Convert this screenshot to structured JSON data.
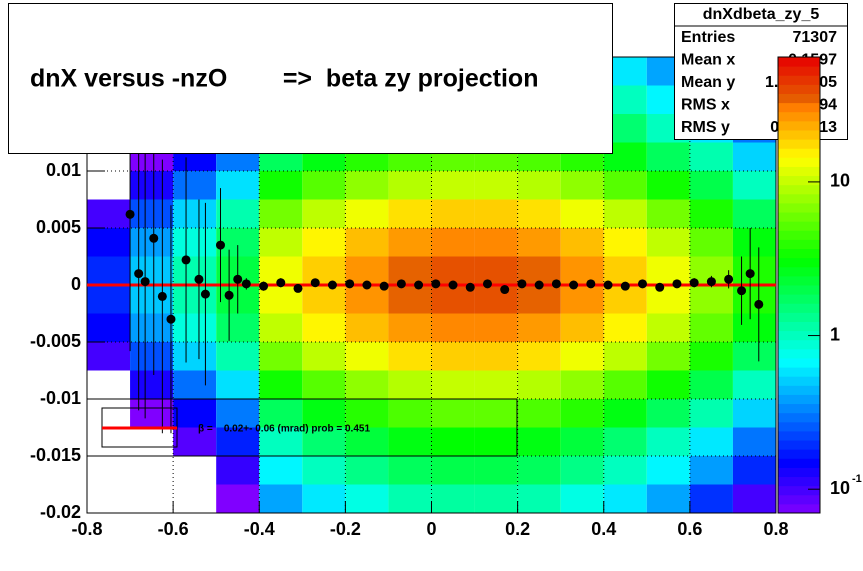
{
  "chart_data": {
    "type": "heatmap",
    "title": "dnX versus -nzO        =>  beta zy projection",
    "xlim": [
      -0.8,
      0.8
    ],
    "xticks": [
      -0.8,
      -0.6,
      -0.4,
      -0.2,
      0,
      0.2,
      0.4,
      0.6,
      0.8
    ],
    "ylim": [
      -0.02,
      0.02
    ],
    "yticks": [
      -0.02,
      -0.015,
      -0.01,
      -0.005,
      0,
      0.005,
      0.01
    ],
    "zlim": [
      0.07,
      65
    ],
    "zticks": [
      {
        "value": 0.1,
        "label": "10",
        "exponent": "-1"
      },
      1,
      10
    ],
    "zlog": true,
    "grid": true,
    "xbins": [
      -0.8,
      -0.7,
      -0.6,
      -0.5,
      -0.4,
      -0.3,
      -0.2,
      -0.1,
      0,
      0.1,
      0.2,
      0.3,
      0.4,
      0.5,
      0.6,
      0.7,
      0.8
    ],
    "ybins": [
      -0.02,
      -0.0175,
      -0.015,
      -0.0125,
      -0.01,
      -0.0075,
      -0.005,
      -0.0025,
      0,
      0.0025,
      0.005,
      0.0075,
      0.01,
      0.0125,
      0.015,
      0.0175,
      0.02
    ],
    "z": [
      [
        0.01,
        0.02,
        0.03,
        0.07,
        0.4,
        0.6,
        0.8,
        1.1,
        1.2,
        1.2,
        1.1,
        0.8,
        0.6,
        0.4,
        0.2,
        0.1
      ],
      [
        0.01,
        0.03,
        0.06,
        0.11,
        0.65,
        1,
        1.4,
        1.8,
        2,
        2,
        1.8,
        1.4,
        1,
        0.65,
        0.38,
        0.19
      ],
      [
        0.02,
        0.04,
        0.09,
        0.18,
        1,
        1.6,
        2.2,
        2.8,
        3.1,
        3.1,
        2.8,
        2.2,
        1.6,
        1,
        0.6,
        0.3
      ],
      [
        0.03,
        0.07,
        0.15,
        0.31,
        1.8,
        2.8,
        3.9,
        4.9,
        5.5,
        5.5,
        4.9,
        3.9,
        2.8,
        1.8,
        1.1,
        0.53
      ],
      [
        0.05,
        0.13,
        0.29,
        0.57,
        3.4,
        5.2,
        7.3,
        9.1,
        10,
        10,
        9.1,
        7.3,
        5.2,
        3.4,
        2,
        1
      ],
      [
        0.1,
        0.24,
        0.53,
        1.1,
        6.2,
        9.6,
        13,
        17,
        19,
        19,
        17,
        13,
        9.6,
        6.2,
        3.6,
        1.8
      ],
      [
        0.15,
        0.38,
        0.83,
        1.7,
        9.8,
        15,
        21,
        26,
        29,
        29,
        26,
        21,
        15,
        9.8,
        5.6,
        2.9
      ],
      [
        0.19,
        0.49,
        1.1,
        2.1,
        13,
        19,
        27,
        34,
        38,
        38,
        34,
        27,
        19,
        13,
        7.3,
        3.7
      ],
      [
        0.19,
        0.49,
        1.1,
        2.1,
        13,
        19,
        27,
        34,
        38,
        38,
        34,
        27,
        19,
        13,
        7.3,
        3.7
      ],
      [
        0.15,
        0.38,
        0.83,
        1.7,
        9.8,
        15,
        21,
        26,
        29,
        29,
        26,
        21,
        15,
        9.8,
        5.6,
        2.9
      ],
      [
        0.1,
        0.24,
        0.53,
        1.1,
        6.2,
        9.6,
        13,
        17,
        19,
        19,
        17,
        13,
        9.6,
        6.2,
        3.6,
        1.8
      ],
      [
        0.05,
        0.13,
        0.29,
        0.57,
        3.4,
        5.2,
        7.3,
        9.1,
        10,
        10,
        9.1,
        7.3,
        5.2,
        3.4,
        2,
        1
      ],
      [
        0.03,
        0.07,
        0.15,
        0.31,
        1.8,
        2.8,
        3.9,
        4.9,
        5.5,
        5.5,
        4.9,
        3.9,
        2.8,
        1.8,
        1.1,
        0.53
      ],
      [
        0.02,
        0.04,
        0.09,
        0.18,
        1,
        1.6,
        2.2,
        2.8,
        3.1,
        3.1,
        2.8,
        2.2,
        1.6,
        1,
        0.6,
        0.3
      ],
      [
        0.01,
        0.03,
        0.06,
        0.11,
        0.65,
        1,
        1.4,
        1.8,
        2,
        2,
        1.8,
        1.4,
        1,
        0.65,
        0.38,
        0.19
      ],
      [
        0.01,
        0.02,
        0.03,
        0.07,
        0.4,
        0.6,
        0.8,
        1.1,
        1.2,
        1.2,
        1.1,
        0.8,
        0.6,
        0.4,
        0.2,
        0.1
      ]
    ],
    "profile": {
      "color": "#000000",
      "x": [
        -0.7,
        -0.68,
        -0.665,
        -0.645,
        -0.625,
        -0.605,
        -0.57,
        -0.54,
        -0.525,
        -0.49,
        -0.47,
        -0.45,
        -0.43,
        -0.39,
        -0.35,
        -0.31,
        -0.27,
        -0.23,
        -0.19,
        -0.15,
        -0.11,
        -0.07,
        -0.03,
        0.01,
        0.05,
        0.09,
        0.13,
        0.17,
        0.21,
        0.25,
        0.29,
        0.33,
        0.37,
        0.41,
        0.45,
        0.49,
        0.53,
        0.57,
        0.61,
        0.65,
        0.69,
        0.72,
        0.74,
        0.76
      ],
      "y": [
        0.0062,
        0.001,
        0.0003,
        0.0041,
        -0.001,
        -0.003,
        0.0022,
        0.0005,
        -0.0008,
        0.0035,
        -0.0009,
        0.0005,
        0.0001,
        -0.0001,
        0.0002,
        -0.0003,
        0.0002,
        0,
        0.0001,
        0,
        -0.0001,
        0.0001,
        0,
        0.0001,
        0,
        -0.0002,
        0.0001,
        -0.0004,
        0.0001,
        0,
        0.0001,
        0,
        0.0001,
        0,
        -0.0001,
        0.0001,
        -0.0002,
        0.0001,
        0.0002,
        0.0003,
        0.0005,
        -0.0005,
        0.001,
        -0.0017
      ],
      "err": [
        0.012,
        0.012,
        0.012,
        0.012,
        0.012,
        0.01,
        0.009,
        0.007,
        0.008,
        0.005,
        0.004,
        0.003,
        0.0005,
        0.0004,
        0.0004,
        0.0003,
        0.0003,
        0.0003,
        0.0002,
        0.0002,
        0.0002,
        0.0002,
        0.0002,
        0.0002,
        0.0002,
        0.0002,
        0.0002,
        0.0002,
        0.0002,
        0.0002,
        0.0002,
        0.0002,
        0.0002,
        0.0002,
        0.0002,
        0.0003,
        0.0003,
        0.0003,
        0.0004,
        0.0005,
        0.0008,
        0.003,
        0.004,
        0.005
      ]
    },
    "fit": {
      "y": 0,
      "color": "#ff0000"
    },
    "legend": {
      "text": "β =    0.02+- 0.06 (mrad) prob = 0.451"
    },
    "stats": {
      "title": "dnXdbeta_zy_5",
      "rows": [
        {
          "label": "Entries",
          "value": "71307"
        },
        {
          "label": "Mean x",
          "value": "0.1597"
        },
        {
          "label": "Mean y",
          "value": "1.861e-05"
        },
        {
          "label": "RMS x",
          "value": "0.2694"
        },
        {
          "label": "RMS y",
          "value": "0.004913"
        }
      ]
    }
  }
}
